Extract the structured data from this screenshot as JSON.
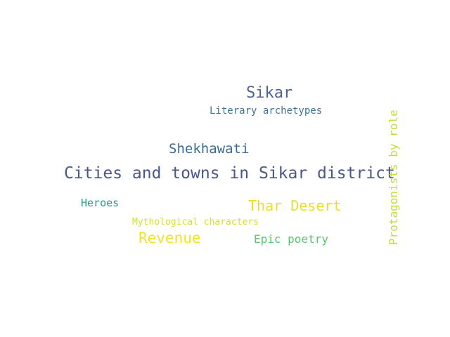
{
  "words": [
    {
      "text": "Sikar",
      "color": "#4e6294"
    },
    {
      "text": "Literary archetypes",
      "color": "#3f7298"
    },
    {
      "text": "Shekhawati",
      "color": "#3b6c94"
    },
    {
      "text": "Cities and towns in Sikar district",
      "color": "#495887"
    },
    {
      "text": "Heroes",
      "color": "#2a9a8e"
    },
    {
      "text": "Thar Desert",
      "color": "#ecdd2c"
    },
    {
      "text": "Mythological characters",
      "color": "#d6df2a"
    },
    {
      "text": "Revenue",
      "color": "#f3e12d"
    },
    {
      "text": "Epic poetry",
      "color": "#58c46b"
    },
    {
      "text": "Protagonists by role",
      "color": "#c4dc3a"
    }
  ]
}
